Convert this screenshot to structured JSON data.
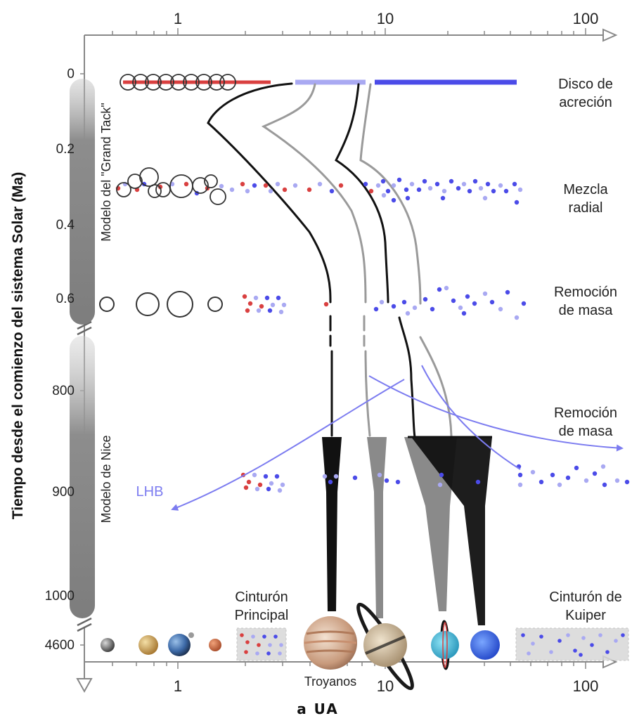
{
  "x_axis": {
    "ticks_top": [
      "1",
      "10",
      "100"
    ],
    "ticks_bottom": [
      "1",
      "10",
      "100"
    ],
    "label": "a UA"
  },
  "y_axis": {
    "label": "Tiempo desde el comienzo del sistema Solar (Ma)",
    "ticks_top_section": [
      "0",
      "0.2",
      "0.4",
      "0.6"
    ],
    "ticks_bottom_section": [
      "800",
      "900",
      "1000"
    ],
    "tick_final": "4600"
  },
  "models": {
    "grand_tack": "Modelo del \"Grand Tack\"",
    "nice": "Modelo de Nice"
  },
  "stages": {
    "disk_line1": "Disco de",
    "disk_line2": "acreción",
    "mixing_line1": "Mezcla",
    "mixing_line2": "radial",
    "removal_line1": "Remoción",
    "removal_line2": "de masa",
    "removal2_line1": "Remoción",
    "removal2_line2": "de masa"
  },
  "regions": {
    "belt_line1": "Cinturón",
    "belt_line2": "Principal",
    "kuiper_line1": "Cinturón de",
    "kuiper_line2": "Kuiper",
    "trojans": "Troyanos",
    "lhb": "LHB"
  },
  "colors": {
    "rocky": "#d94040",
    "icy": "#4b4be8",
    "icy_light": "#a9a9f2",
    "giant_black": "#111111",
    "giant_gray": "#8a8a8a",
    "arrow": "#7c7cf0"
  }
}
